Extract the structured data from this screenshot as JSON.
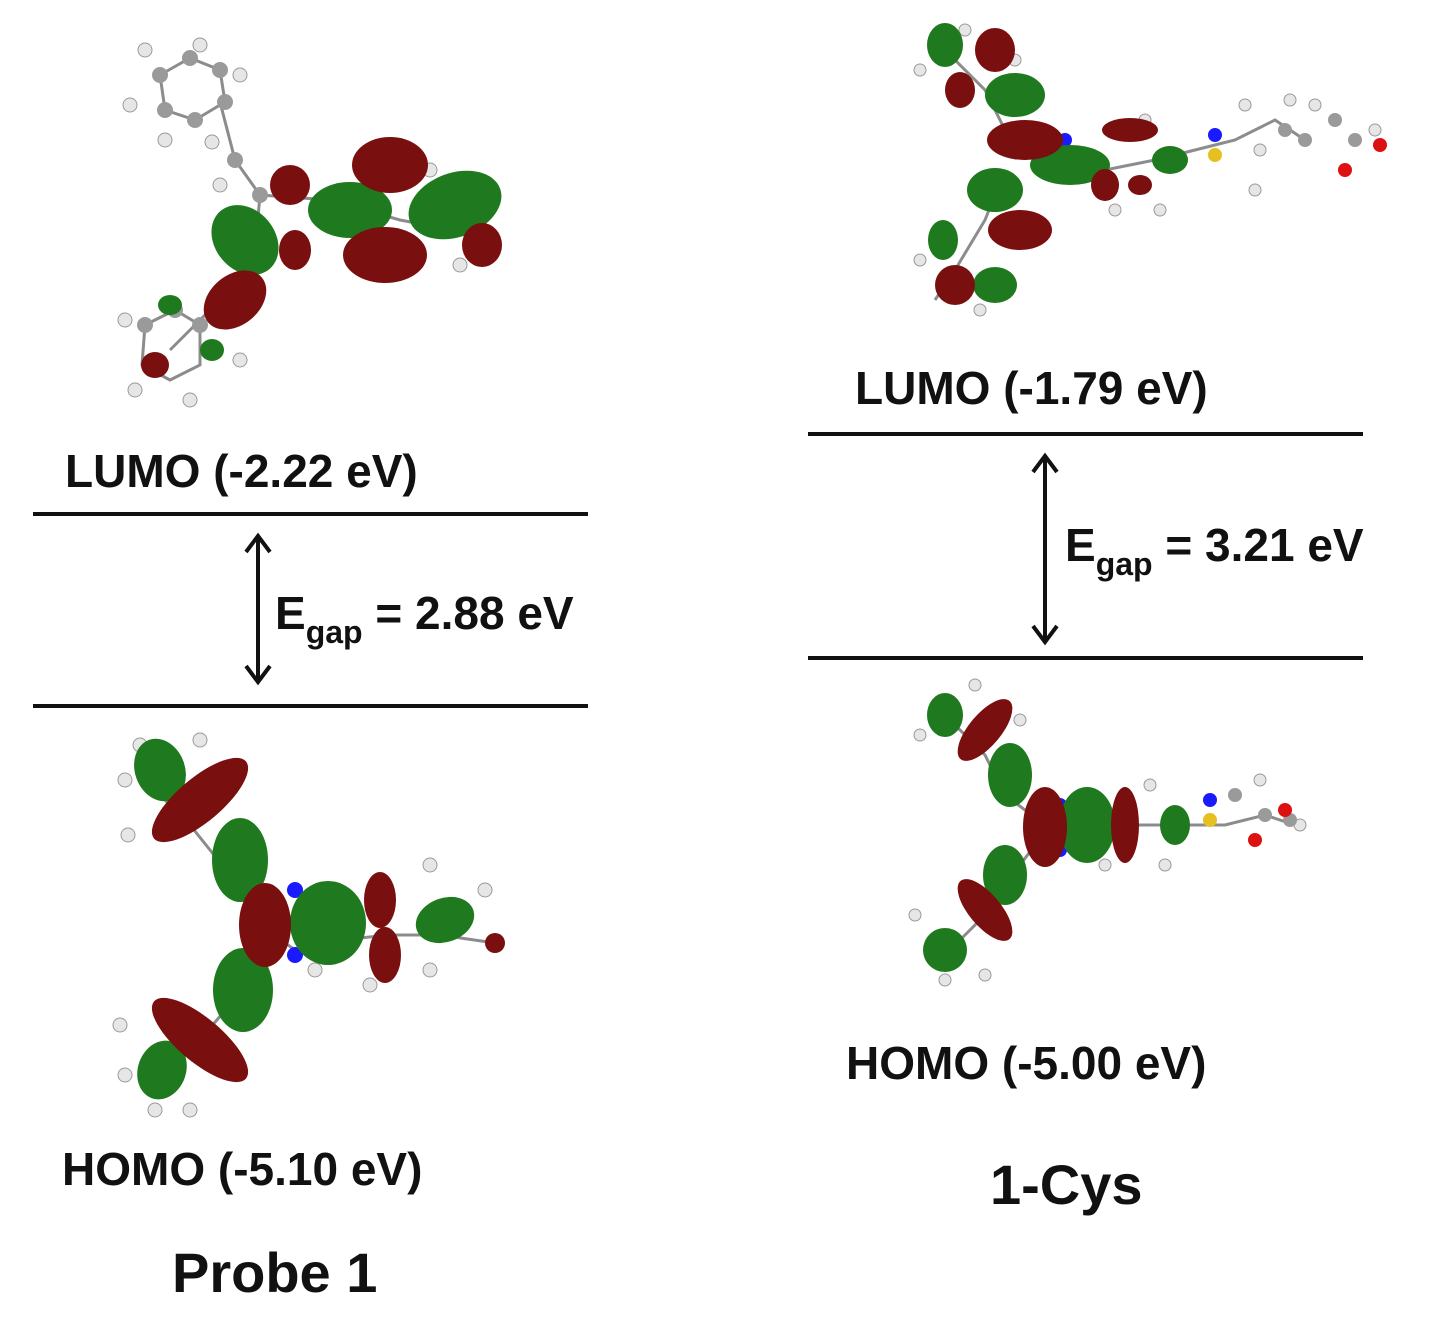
{
  "colors": {
    "orbital_positive": "#1f7a1f",
    "orbital_negative": "#7a0f0f",
    "atom_carbon": "#9a9a9a",
    "atom_hydrogen": "#e6e6e6",
    "atom_nitrogen": "#1a1aff",
    "atom_sulfur": "#e6c020",
    "atom_oxygen": "#dd1111",
    "level_line": "#111111"
  },
  "left": {
    "name": "Probe 1",
    "lumo": {
      "label": "LUMO",
      "energy": "(-2.22 eV)"
    },
    "homo": {
      "label": "HOMO",
      "energy": "(-5.10 eV)"
    },
    "gap": {
      "symbol": "E",
      "subscript": "gap",
      "value": "= 2.88 eV"
    }
  },
  "right": {
    "name": "1-Cys",
    "lumo": {
      "label": "LUMO",
      "energy": "(-1.79 eV)"
    },
    "homo": {
      "label": "HOMO",
      "energy": "(-5.00 eV)"
    },
    "gap": {
      "symbol": "E",
      "subscript": "gap",
      "value": "= 3.21 eV"
    }
  }
}
